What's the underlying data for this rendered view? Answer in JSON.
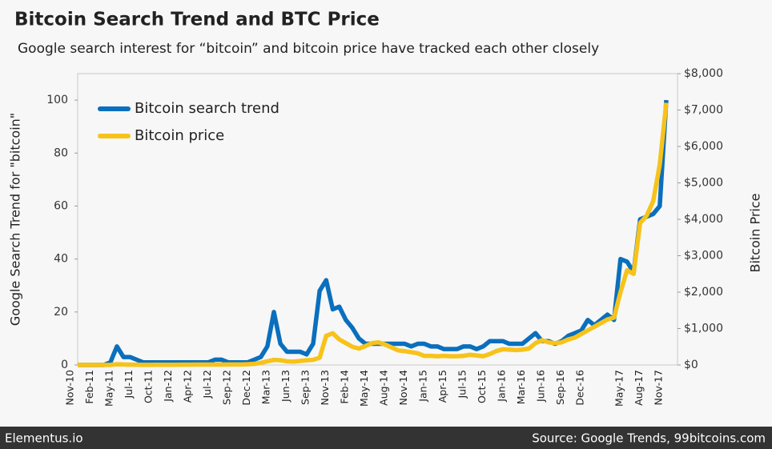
{
  "chart_data": {
    "type": "line",
    "title": "Bitcoin Search Trend and BTC Price",
    "subtitle": "Google search interest for “bitcoin” and bitcoin price have tracked each other closely",
    "y_label": "Google Search Trend for \"bitcoin\"",
    "y2_label": "Bitcoin Price",
    "footer_left": "Elementus.io",
    "footer_right": "Source: Google Trends, 99bitcoins.com",
    "categories": [
      "Nov-10",
      null,
      null,
      "Feb-11",
      null,
      null,
      "May-11",
      null,
      null,
      "Jul-11",
      null,
      null,
      "Oct-11",
      null,
      null,
      "Jan-12",
      null,
      null,
      "Apr-12",
      null,
      null,
      "Jul-12",
      null,
      null,
      "Sep-12",
      null,
      null,
      "Dec-12",
      null,
      null,
      "Mar-13",
      null,
      null,
      "Jun-13",
      null,
      null,
      "Sep-13",
      null,
      null,
      "Nov-13",
      null,
      null,
      "Feb-14",
      null,
      null,
      "May-14",
      null,
      null,
      "Aug-14",
      null,
      null,
      "Nov-14",
      null,
      null,
      "Jan-15",
      null,
      null,
      "Apr-15",
      null,
      null,
      "Jul-15",
      null,
      null,
      "Oct-15",
      null,
      null,
      "Jan-16",
      null,
      null,
      "Mar-16",
      null,
      null,
      "Jun-16",
      null,
      null,
      "Sep-16",
      null,
      null,
      "Dec-16",
      null,
      null,
      null,
      null,
      null,
      "May-17",
      null,
      null,
      "Aug-17",
      null,
      null,
      "Nov-17"
    ],
    "series": [
      {
        "name": "Bitcoin search trend",
        "color": "#0a6fbd",
        "axis": "y",
        "values": [
          0,
          0,
          0,
          0,
          0,
          1,
          7,
          3,
          3,
          2,
          1,
          1,
          1,
          1,
          1,
          1,
          1,
          1,
          1,
          1,
          1,
          2,
          2,
          1,
          1,
          1,
          1,
          2,
          3,
          7,
          20,
          8,
          5,
          5,
          5,
          4,
          8,
          28,
          32,
          21,
          22,
          17,
          14,
          10,
          8,
          8,
          8,
          8,
          8,
          8,
          8,
          7,
          8,
          8,
          7,
          7,
          6,
          6,
          6,
          7,
          7,
          6,
          7,
          9,
          9,
          9,
          8,
          8,
          8,
          10,
          12,
          9,
          9,
          8,
          9,
          11,
          12,
          13,
          17,
          15,
          17,
          19,
          17,
          40,
          39,
          35,
          55,
          56,
          57,
          60,
          100
        ]
      },
      {
        "name": "Bitcoin price",
        "color": "#f7c31a",
        "axis": "y2",
        "values": [
          0.3,
          0.3,
          0.4,
          1,
          1,
          3,
          18,
          14,
          8,
          5,
          3,
          3,
          5,
          5,
          5,
          5,
          7,
          9,
          11,
          11,
          12,
          12,
          11,
          13,
          13,
          13,
          20,
          30,
          60,
          100,
          140,
          130,
          100,
          90,
          110,
          130,
          140,
          200,
          800,
          870,
          700,
          600,
          500,
          450,
          520,
          600,
          620,
          560,
          480,
          400,
          380,
          350,
          320,
          250,
          250,
          240,
          250,
          240,
          240,
          250,
          280,
          260,
          240,
          300,
          380,
          430,
          420,
          410,
          420,
          450,
          600,
          680,
          620,
          600,
          620,
          700,
          750,
          850,
          950,
          1050,
          1150,
          1250,
          1300,
          2000,
          2600,
          2500,
          3900,
          4100,
          4500,
          5500,
          7200
        ]
      }
    ],
    "ylim": [
      0,
      110
    ],
    "yticks": [
      0,
      20,
      40,
      60,
      80,
      100
    ],
    "y2lim": [
      0,
      8000
    ],
    "y2ticks": [
      {
        "value": 0,
        "label": "$0"
      },
      {
        "value": 1000,
        "label": "$1,000"
      },
      {
        "value": 2000,
        "label": "$2,000"
      },
      {
        "value": 3000,
        "label": "$3,000"
      },
      {
        "value": 4000,
        "label": "$4,000"
      },
      {
        "value": 5000,
        "label": "$5,000"
      },
      {
        "value": 6000,
        "label": "$6,000"
      },
      {
        "value": 7000,
        "label": "$7,000"
      },
      {
        "value": 8000,
        "label": "$8,000"
      }
    ],
    "legend": "upper left"
  }
}
